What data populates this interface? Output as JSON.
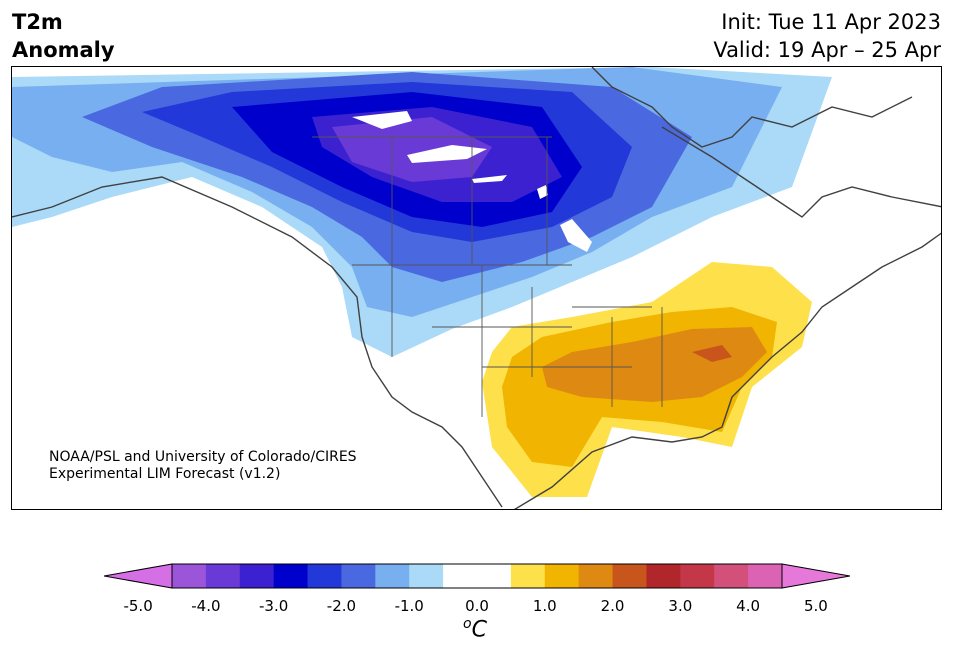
{
  "header": {
    "title_line1": "T2m",
    "title_line2": "Anomaly",
    "init": "Init: Tue 11 Apr 2023",
    "valid": "Valid: 19 Apr – 25 Apr"
  },
  "credit": {
    "line1": "NOAA/PSL and University of Colorado/CIRES",
    "line2": "Experimental LIM Forecast (v1.2)"
  },
  "colorbar": {
    "colors": [
      "#d56fe6",
      "#9a55d8",
      "#6a3ad6",
      "#3c21d1",
      "#0000cd",
      "#2238d8",
      "#4a69e0",
      "#78aff0",
      "#aadaf8",
      "#ffffff",
      "#ffffff",
      "#fde04a",
      "#f1b400",
      "#de8a12",
      "#c8561c",
      "#b0262a",
      "#c43748",
      "#d3507b",
      "#dc63b4",
      "#e678d9"
    ],
    "ticks": [
      "-5.0",
      "-4.0",
      "-3.0",
      "-2.0",
      "-1.0",
      "0.0",
      "1.0",
      "2.0",
      "3.0",
      "4.0",
      "5.0"
    ],
    "unit_symbol": "o",
    "unit_letter": "C"
  },
  "map": {
    "region": "North America",
    "cold_anomaly_colors": [
      "#aadaf8",
      "#78aff0",
      "#4a69e0",
      "#2238d8",
      "#0000cd",
      "#3c21d1",
      "#6a3ad6"
    ],
    "warm_anomaly_colors": [
      "#fde04a",
      "#f1b400",
      "#de8a12",
      "#c8561c"
    ]
  }
}
